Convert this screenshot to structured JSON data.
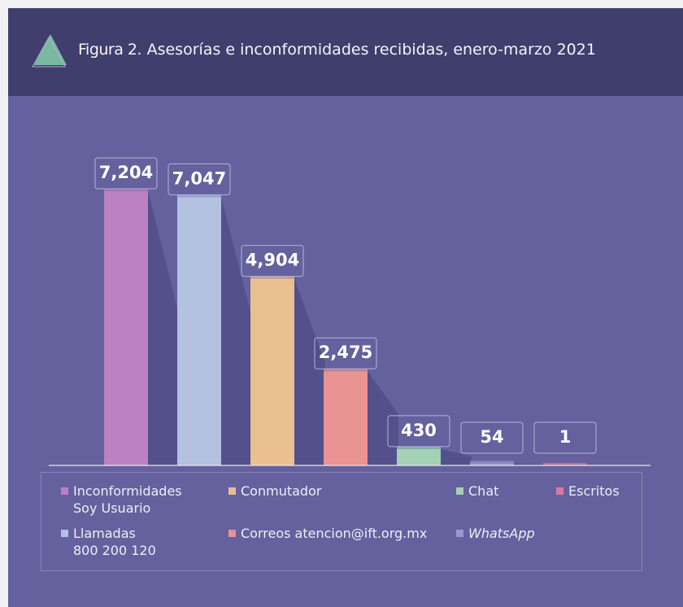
{
  "chart_data": {
    "type": "bar",
    "figure_label": "Figura 2",
    "title": ". Asesorías e inconformidades recibidas, enero-marzo 2021",
    "series": [
      {
        "name": "Inconformidades\nSoy Usuario",
        "color": "#c384c6",
        "values": [
          7204
        ],
        "value_labels": [
          "7,204"
        ]
      },
      {
        "name": "Llamadas\n800 200 120",
        "color": "#b9cbe6",
        "values": [
          7047
        ],
        "value_labels": [
          "7,047"
        ]
      },
      {
        "name": "Conmutador",
        "color": "#f6c98f",
        "values": [
          4904
        ],
        "value_labels": [
          "4,904"
        ]
      },
      {
        "name": "Correos atencion@ift.org.mx",
        "color": "#f59892",
        "values": [
          2475
        ],
        "value_labels": [
          "2,475"
        ]
      },
      {
        "name": "Chat",
        "color": "#a8dcb7",
        "values": [
          430
        ],
        "value_labels": [
          "430"
        ]
      },
      {
        "name": "WhatsApp",
        "color": "#a09ed2",
        "values": [
          54
        ],
        "value_labels": [
          "54"
        ]
      },
      {
        "name": "Escritos",
        "color": "#e4809c",
        "values": [
          1
        ],
        "value_labels": [
          "1"
        ]
      }
    ]
  }
}
